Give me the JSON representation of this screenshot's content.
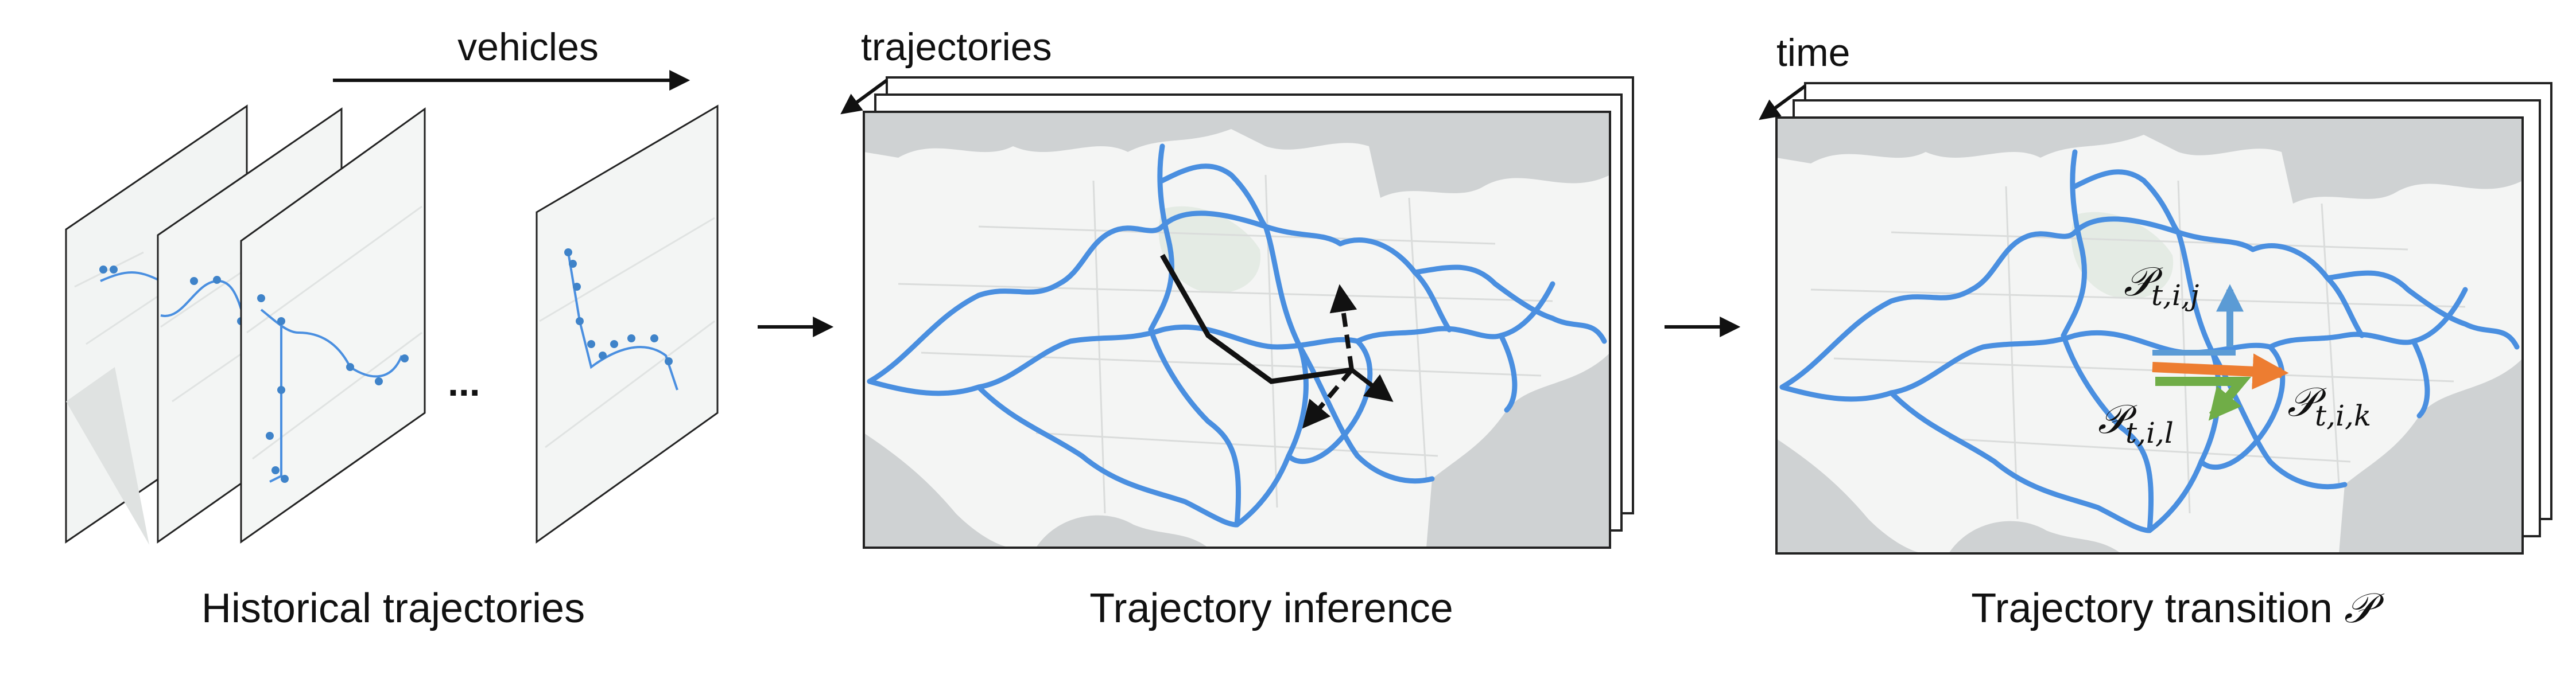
{
  "panels": {
    "historical": {
      "caption": "Historical trajectories",
      "axis_label": "vehicles",
      "ellipsis": "..."
    },
    "inference": {
      "caption": "Trajectory inference",
      "stack_label": "trajectories"
    },
    "transition": {
      "caption_text": "Trajectory transition ",
      "caption_symbol": "𝒫",
      "stack_label": "time",
      "labels": [
        {
          "symbol": "𝒫",
          "sub": "t,i,j"
        },
        {
          "symbol": "𝒫",
          "sub": "t,i,k"
        },
        {
          "symbol": "𝒫",
          "sub": "t,i,l"
        }
      ]
    }
  },
  "colors": {
    "road": "#4a8fe0",
    "arrow_up": "#5b9bd5",
    "arrow_right": "#ed7d31",
    "arrow_down": "#70ad47",
    "ink": "#111111"
  }
}
